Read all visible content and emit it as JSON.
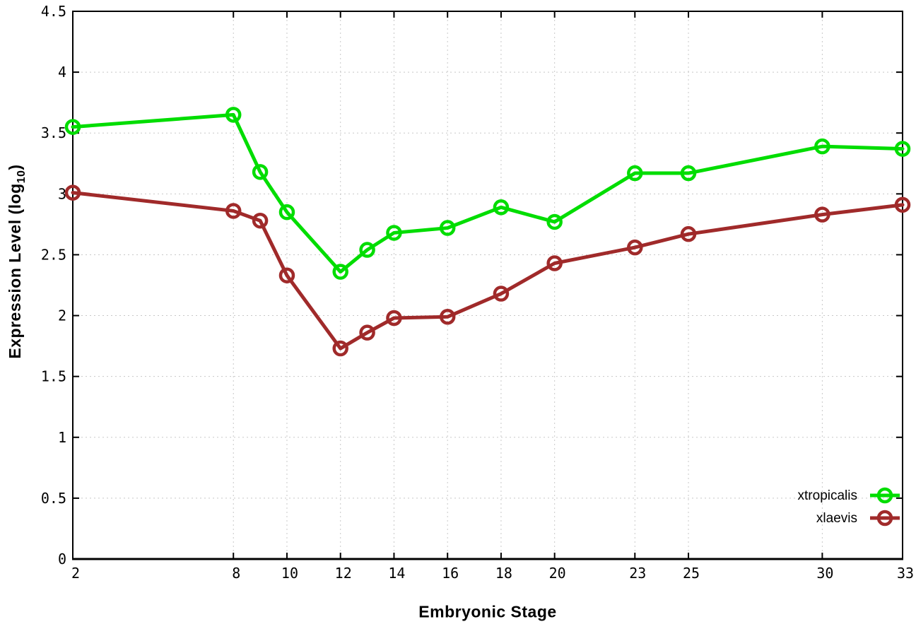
{
  "figure": {
    "background": "#ffffff"
  },
  "chart_data": {
    "type": "line",
    "title": "",
    "xlabel": "Embryonic Stage",
    "ylabel": "Expression Level (log10)",
    "ylabel_parts": {
      "prefix": "Expression Level (log",
      "sub": "10",
      "suffix": ")"
    },
    "x": [
      2,
      8,
      9,
      10,
      12,
      13,
      14,
      16,
      18,
      20,
      23,
      25,
      30,
      33
    ],
    "series": [
      {
        "name": "xtropicalis",
        "color": "#00dd00",
        "values": [
          3.55,
          3.65,
          3.18,
          2.85,
          2.36,
          2.54,
          2.68,
          2.72,
          2.89,
          2.77,
          3.17,
          3.17,
          3.39,
          3.37
        ]
      },
      {
        "name": "xlaevis",
        "color": "#a02a2a",
        "values": [
          3.01,
          2.86,
          2.78,
          2.33,
          1.73,
          1.86,
          1.98,
          1.99,
          2.18,
          2.43,
          2.56,
          2.67,
          2.83,
          2.91
        ]
      }
    ],
    "xlim": [
      2,
      33
    ],
    "ylim": [
      0,
      4.5
    ],
    "x_ticks": [
      2,
      8,
      10,
      12,
      14,
      16,
      18,
      20,
      23,
      25,
      30,
      33
    ],
    "x_tick_labels": [
      "2",
      "8",
      "10",
      "12",
      "14",
      "16",
      "18",
      "20",
      "23",
      "25",
      "30",
      "33"
    ],
    "y_ticks": [
      0,
      0.5,
      1,
      1.5,
      2,
      2.5,
      3,
      3.5,
      4,
      4.5
    ],
    "y_tick_labels": [
      "0",
      "0.5",
      "1",
      "1.5",
      "2",
      "2.5",
      "3",
      "3.5",
      "4",
      "4.5"
    ],
    "grid": true,
    "grid_color": "#c8c8c8",
    "axis_color": "#000000",
    "tick_label_color": "#000000",
    "marker": "open-circle",
    "legend_position": "bottom-right",
    "legend_entries": [
      "xtropicalis",
      "xlaevis"
    ]
  }
}
